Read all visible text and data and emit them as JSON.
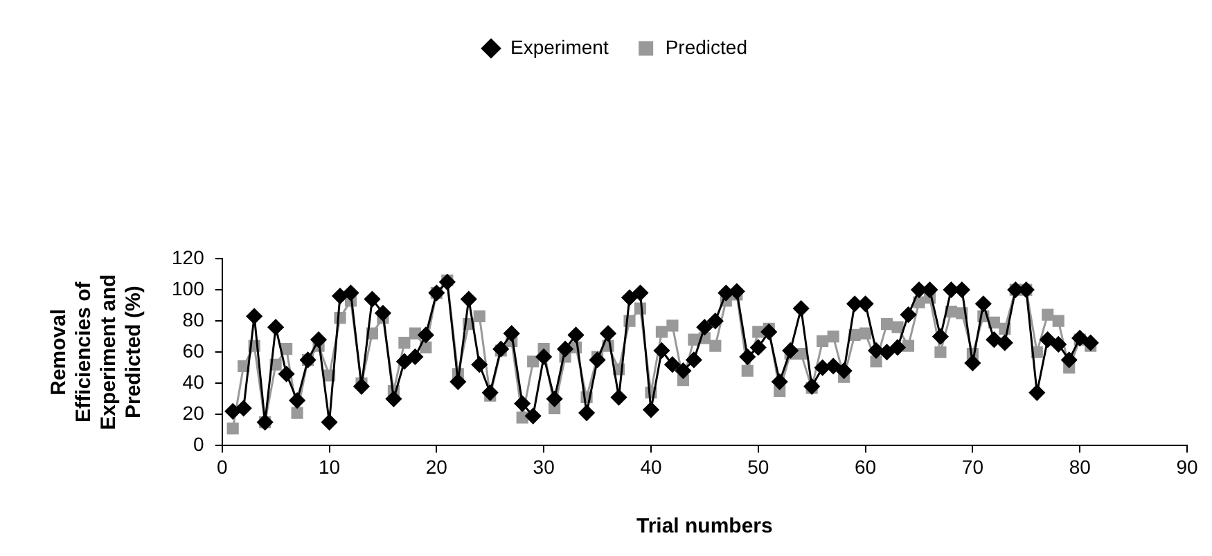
{
  "chart_data": {
    "type": "line",
    "xlabel": "Trial numbers",
    "ylabel": "Removal Efficiencies of Experiment and Predicted (%)",
    "x": [
      1,
      2,
      3,
      4,
      5,
      6,
      7,
      8,
      9,
      10,
      11,
      12,
      13,
      14,
      15,
      16,
      17,
      18,
      19,
      20,
      21,
      22,
      23,
      24,
      25,
      26,
      27,
      28,
      29,
      30,
      31,
      32,
      33,
      34,
      35,
      36,
      37,
      38,
      39,
      40,
      41,
      42,
      43,
      44,
      45,
      46,
      47,
      48,
      49,
      50,
      51,
      52,
      53,
      54,
      55,
      56,
      57,
      58,
      59,
      60,
      61,
      62,
      63,
      64,
      65,
      66,
      67,
      68,
      69,
      70,
      71,
      72,
      73,
      74,
      75,
      76,
      77,
      78,
      79,
      80,
      81
    ],
    "series": [
      {
        "name": "Experiment",
        "color": "#000000",
        "marker": "diamond",
        "values": [
          22,
          24,
          83,
          15,
          76,
          46,
          29,
          55,
          68,
          15,
          96,
          98,
          38,
          94,
          85,
          30,
          54,
          57,
          71,
          98,
          105,
          41,
          94,
          52,
          34,
          62,
          72,
          27,
          19,
          57,
          30,
          62,
          71,
          21,
          55,
          72,
          31,
          95,
          98,
          23,
          61,
          52,
          48,
          55,
          76,
          80,
          98,
          99,
          57,
          63,
          73,
          41,
          61,
          88,
          38,
          50,
          51,
          48,
          91,
          91,
          61,
          60,
          63,
          84,
          100,
          100,
          70,
          100,
          100,
          53,
          91,
          68,
          66,
          100,
          100,
          34,
          68,
          65,
          55,
          69,
          66
        ]
      },
      {
        "name": "Predicted",
        "color": "#999999",
        "marker": "square",
        "values": [
          11,
          51,
          64,
          15,
          52,
          62,
          21,
          55,
          64,
          45,
          82,
          93,
          40,
          72,
          82,
          35,
          66,
          72,
          63,
          98,
          106,
          46,
          78,
          83,
          32,
          61,
          67,
          18,
          54,
          62,
          24,
          57,
          63,
          31,
          57,
          64,
          49,
          80,
          88,
          34,
          73,
          77,
          42,
          68,
          69,
          64,
          93,
          97,
          48,
          73,
          75,
          35,
          59,
          59,
          37,
          67,
          70,
          44,
          71,
          72,
          54,
          78,
          76,
          64,
          92,
          95,
          60,
          86,
          85,
          59,
          83,
          79,
          75,
          100,
          100,
          60,
          84,
          80,
          50,
          68,
          64
        ]
      }
    ],
    "xlim": [
      0,
      90
    ],
    "xticks": [
      0,
      10,
      20,
      30,
      40,
      50,
      60,
      70,
      80,
      90
    ],
    "ylim": [
      0,
      120
    ],
    "yticks": [
      0,
      20,
      40,
      60,
      80,
      100,
      120
    ],
    "grid": false,
    "legend": "top",
    "line_style": "solid"
  }
}
